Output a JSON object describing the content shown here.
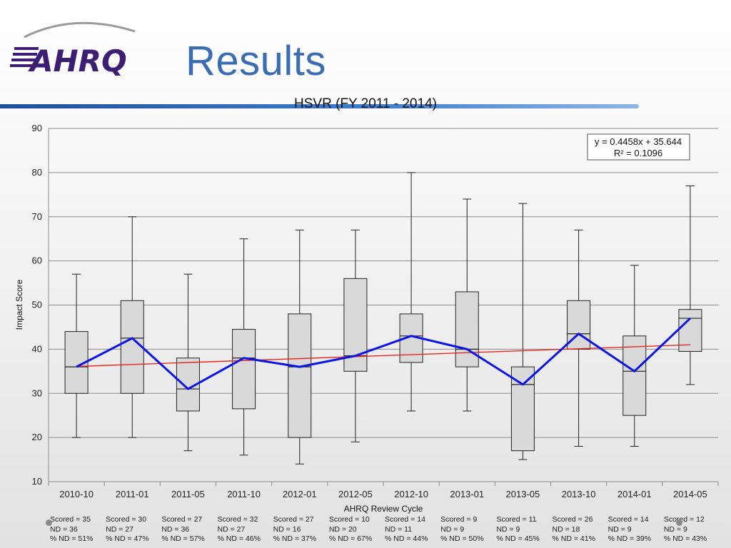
{
  "slide": {
    "title": "Results"
  },
  "logo": {
    "text": "AHRQ"
  },
  "chart_data": {
    "type": "boxplot",
    "title": "HSVR (FY 2011 - 2014)",
    "xlabel": "AHRQ Review Cycle",
    "ylabel": "Impact Score",
    "ylim": [
      10,
      90
    ],
    "yticks": [
      10,
      20,
      30,
      40,
      50,
      60,
      70,
      80,
      90
    ],
    "grid": true,
    "categories": [
      "2010-10",
      "2011-01",
      "2011-05",
      "2011-10",
      "2012-01",
      "2012-05",
      "2012-10",
      "2013-01",
      "2013-05",
      "2013-10",
      "2014-01",
      "2014-05"
    ],
    "boxes": [
      {
        "min": 20,
        "q1": 30,
        "median": 36,
        "q3": 44,
        "max": 57
      },
      {
        "min": 20,
        "q1": 30,
        "median": 42.5,
        "q3": 51,
        "max": 70
      },
      {
        "min": 17,
        "q1": 26,
        "median": 31,
        "q3": 38,
        "max": 57
      },
      {
        "min": 16,
        "q1": 26.5,
        "median": 38,
        "q3": 44.5,
        "max": 65
      },
      {
        "min": 14,
        "q1": 20,
        "median": 36,
        "q3": 48,
        "max": 67
      },
      {
        "min": 19,
        "q1": 35,
        "median": 38.5,
        "q3": 56,
        "max": 67
      },
      {
        "min": 26,
        "q1": 37,
        "median": 43,
        "q3": 48,
        "max": 80
      },
      {
        "min": 26,
        "q1": 36,
        "median": 40,
        "q3": 53,
        "max": 74
      },
      {
        "min": 15,
        "q1": 17,
        "median": 32,
        "q3": 36,
        "max": 73
      },
      {
        "min": 18,
        "q1": 40,
        "median": 43.5,
        "q3": 51,
        "max": 67
      },
      {
        "min": 18,
        "q1": 25,
        "median": 35,
        "q3": 43,
        "max": 59
      },
      {
        "min": 32,
        "q1": 39.5,
        "median": 47,
        "q3": 49,
        "max": 77
      }
    ],
    "median_line_color": "#0a14e6",
    "trendline": {
      "slope": 0.4458,
      "intercept": 35.644,
      "color": "#e8281e",
      "equation": "y = 0.4458x + 35.644",
      "r2": "R² = 0.1096"
    },
    "box_fill": "#d9d9d9",
    "stats": [
      {
        "scored": "Scored = 35",
        "nd": "ND = 36",
        "pct": "% ND = 51%"
      },
      {
        "scored": "Scored = 30",
        "nd": "ND = 27",
        "pct": "% ND = 47%"
      },
      {
        "scored": "Scored = 27",
        "nd": "ND = 36",
        "pct": "% ND = 57%"
      },
      {
        "scored": "Scored = 32",
        "nd": "ND = 27",
        "pct": "% ND = 46%"
      },
      {
        "scored": "Scored = 27",
        "nd": "ND = 16",
        "pct": "% ND = 37%"
      },
      {
        "scored": "Scored = 10",
        "nd": "ND = 20",
        "pct": "% ND = 67%"
      },
      {
        "scored": "Scored = 14",
        "nd": "ND = 11",
        "pct": "% ND = 44%"
      },
      {
        "scored": "Scored = 9",
        "nd": "ND = 9",
        "pct": "% ND = 50%"
      },
      {
        "scored": "Scored = 11",
        "nd": "ND = 9",
        "pct": "% ND = 45%"
      },
      {
        "scored": "Scored = 26",
        "nd": "ND = 18",
        "pct": "% ND = 41%"
      },
      {
        "scored": "Scored = 14",
        "nd": "ND = 9",
        "pct": "% ND = 39%"
      },
      {
        "scored": "Scored = 12",
        "nd": "ND = 9",
        "pct": "% ND = 43%"
      }
    ]
  }
}
